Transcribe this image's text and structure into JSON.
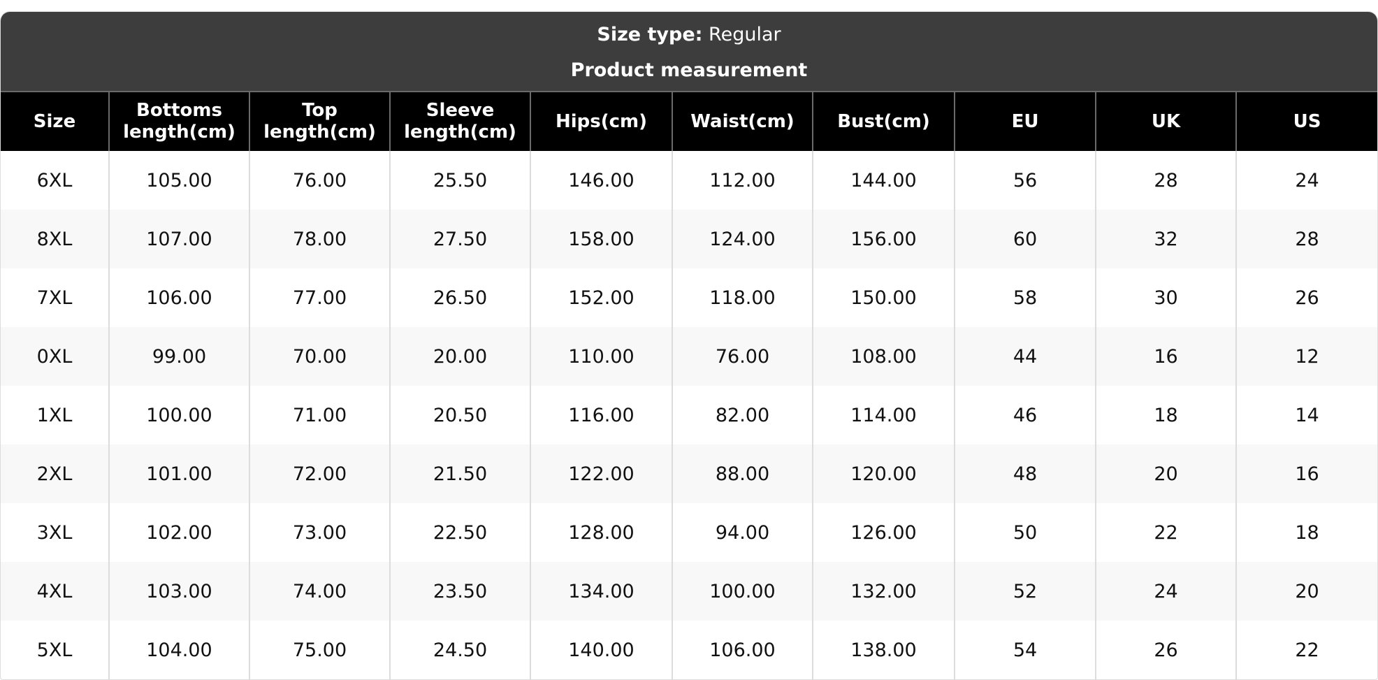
{
  "header": {
    "size_type_label": "Size type:",
    "size_type_value": "Regular",
    "subtitle": "Product measurement"
  },
  "table": {
    "columns": [
      "Size",
      "Bottoms length(cm)",
      "Top length(cm)",
      "Sleeve length(cm)",
      "Hips(cm)",
      "Waist(cm)",
      "Bust(cm)",
      "EU",
      "UK",
      "US"
    ],
    "rows": [
      [
        "6XL",
        "105.00",
        "76.00",
        "25.50",
        "146.00",
        "112.00",
        "144.00",
        "56",
        "28",
        "24"
      ],
      [
        "8XL",
        "107.00",
        "78.00",
        "27.50",
        "158.00",
        "124.00",
        "156.00",
        "60",
        "32",
        "28"
      ],
      [
        "7XL",
        "106.00",
        "77.00",
        "26.50",
        "152.00",
        "118.00",
        "150.00",
        "58",
        "30",
        "26"
      ],
      [
        "0XL",
        "99.00",
        "70.00",
        "20.00",
        "110.00",
        "76.00",
        "108.00",
        "44",
        "16",
        "12"
      ],
      [
        "1XL",
        "100.00",
        "71.00",
        "20.50",
        "116.00",
        "82.00",
        "114.00",
        "46",
        "18",
        "14"
      ],
      [
        "2XL",
        "101.00",
        "72.00",
        "21.50",
        "122.00",
        "88.00",
        "120.00",
        "48",
        "20",
        "16"
      ],
      [
        "3XL",
        "102.00",
        "73.00",
        "22.50",
        "128.00",
        "94.00",
        "126.00",
        "50",
        "22",
        "18"
      ],
      [
        "4XL",
        "103.00",
        "74.00",
        "23.50",
        "134.00",
        "100.00",
        "132.00",
        "52",
        "24",
        "20"
      ],
      [
        "5XL",
        "104.00",
        "75.00",
        "24.50",
        "140.00",
        "106.00",
        "138.00",
        "54",
        "26",
        "22"
      ]
    ]
  },
  "colors": {
    "title_bg": "#3d3d3d",
    "header_bg": "#000000",
    "alt_row_bg": "#f8f8f8"
  }
}
